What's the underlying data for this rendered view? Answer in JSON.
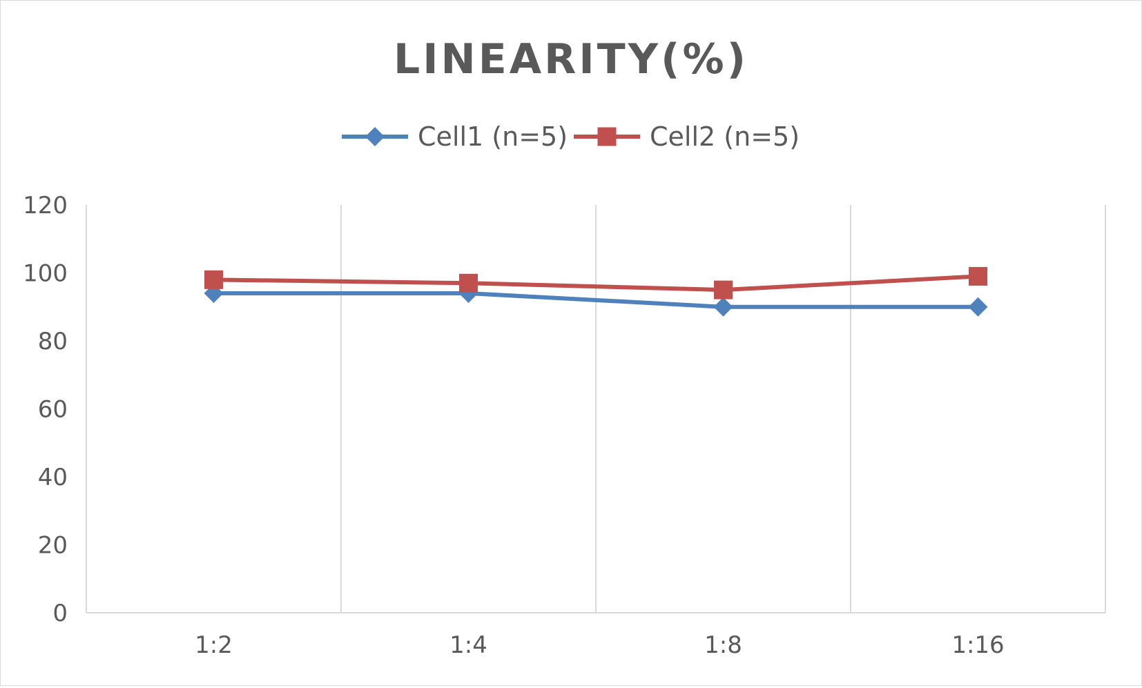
{
  "chart_data": {
    "type": "line",
    "title": "LINEARITY(%)",
    "xlabel": "",
    "ylabel": "",
    "categories": [
      "1:2",
      "1:4",
      "1:8",
      "1:16"
    ],
    "series": [
      {
        "name": "Cell1 (n=5)",
        "values": [
          94,
          94,
          90,
          90
        ],
        "color": "#4f81bd",
        "marker": "diamond"
      },
      {
        "name": "Cell2 (n=5)",
        "values": [
          98,
          97,
          95,
          99
        ],
        "color": "#c0504d",
        "marker": "square"
      }
    ],
    "ylim": [
      0,
      120
    ],
    "yticks": [
      0,
      20,
      40,
      60,
      80,
      100,
      120
    ],
    "grid": "vertical",
    "legend": "top-center"
  }
}
